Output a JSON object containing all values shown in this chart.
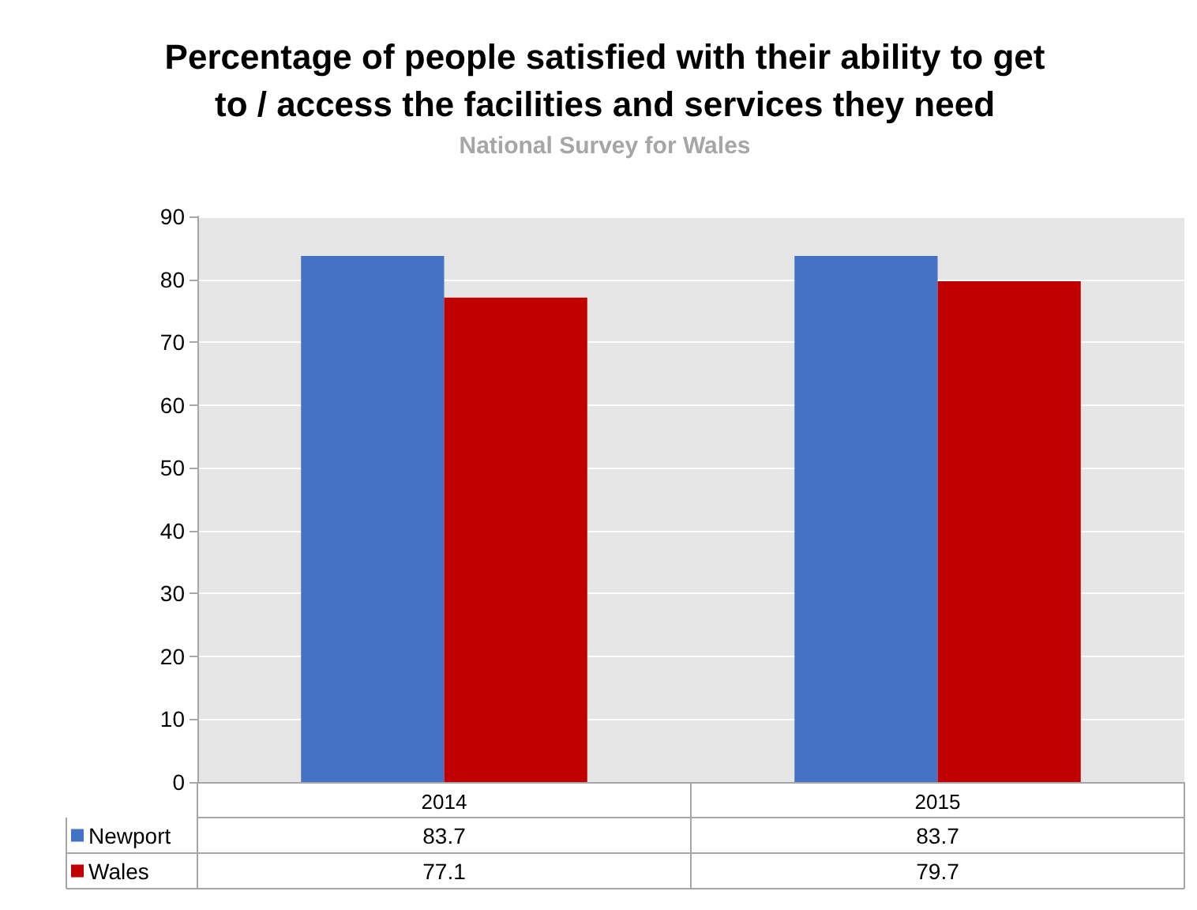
{
  "chart_data": {
    "type": "bar",
    "title": "Percentage of people satisfied with their ability to get\nto / access the facilities and services they need",
    "subtitle": "National Survey for Wales",
    "categories": [
      "2014",
      "2015"
    ],
    "series": [
      {
        "name": "Newport",
        "color": "#4472c4",
        "values": [
          83.7,
          83.7
        ]
      },
      {
        "name": "Wales",
        "color": "#c00000",
        "values": [
          77.1,
          79.7
        ]
      }
    ],
    "ylim": [
      0,
      90
    ],
    "yticks": [
      0,
      10,
      20,
      30,
      40,
      50,
      60,
      70,
      80,
      90
    ],
    "grid": "y",
    "legend": "bottom",
    "data_labels": true
  }
}
